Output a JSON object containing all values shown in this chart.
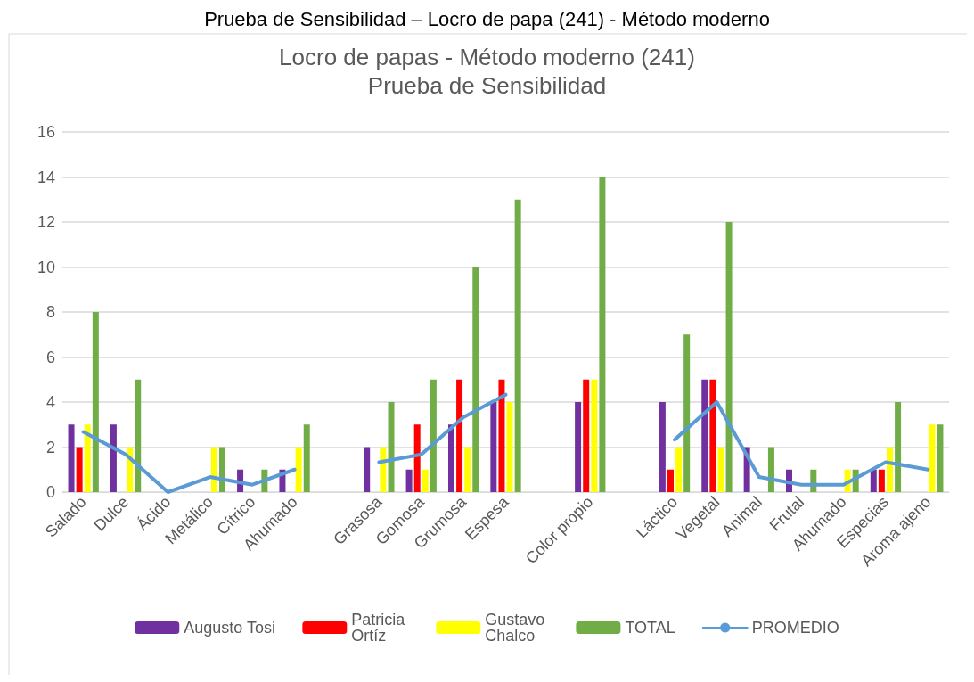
{
  "chart_data": {
    "type": "bar",
    "title": "Locro de papas - Método moderno (241)",
    "subtitle": "Prueba de Sensibilidad",
    "annotations": [
      "Prueba de Sensibilidad – Locro de papa (241) - Método moderno"
    ],
    "categories": [
      "Salado",
      "Dulce",
      "Ácido",
      "Metálico",
      "Cítrico",
      "Ahumado",
      null,
      "Grasosa",
      "Gomosa",
      "Grumosa",
      "Espesa",
      null,
      "Color propio",
      null,
      "Láctico",
      "Vegetal",
      "Animal",
      "Frutal",
      "Ahumado",
      "Especias",
      "Aroma ajeno"
    ],
    "series": [
      {
        "name": "Augusto Tosi",
        "color": "#7030a0",
        "values": [
          3,
          3,
          0,
          0,
          1,
          1,
          null,
          2,
          1,
          3,
          4,
          null,
          4,
          null,
          4,
          5,
          2,
          1,
          0,
          1,
          0
        ]
      },
      {
        "name": "Patricia Ortíz",
        "color": "#ff0000",
        "values": [
          2,
          0,
          0,
          0,
          0,
          0,
          null,
          0,
          3,
          5,
          5,
          null,
          5,
          null,
          1,
          5,
          0,
          0,
          0,
          1,
          0
        ]
      },
      {
        "name": "Gustavo Chalco",
        "color": "#ffff00",
        "values": [
          3,
          2,
          0,
          2,
          0,
          2,
          null,
          2,
          1,
          2,
          4,
          null,
          5,
          null,
          2,
          2,
          0,
          0,
          1,
          2,
          3
        ]
      },
      {
        "name": "TOTAL",
        "color": "#70ad47",
        "values": [
          8,
          5,
          0,
          2,
          1,
          3,
          null,
          4,
          5,
          10,
          13,
          null,
          14,
          null,
          7,
          12,
          2,
          1,
          1,
          4,
          3
        ]
      },
      {
        "name": "PROMEDIO",
        "type": "line",
        "color": "#5b9bd5",
        "values": [
          2.67,
          1.67,
          0,
          0.67,
          0.33,
          1,
          null,
          1.33,
          1.67,
          3.33,
          4.33,
          null,
          null,
          null,
          2.33,
          4,
          0.67,
          0.33,
          0.33,
          1.33,
          1
        ]
      }
    ],
    "ylim": [
      0,
      16
    ],
    "yticks": [
      0,
      2,
      4,
      6,
      8,
      10,
      12,
      14,
      16
    ],
    "grid": "y",
    "legend": "bottom",
    "marker": "none",
    "line_style": "solid"
  }
}
